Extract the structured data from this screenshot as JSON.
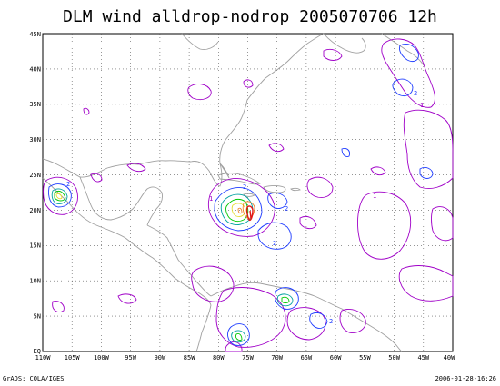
{
  "title": "DLM wind alldrop-nodrop 2005070706 12h",
  "footer": {
    "left": "GrADS: COLA/IGES",
    "right": "2006-01-28-16:26"
  },
  "map": {
    "lon_range": [
      -110,
      -40
    ],
    "lat_range": [
      0,
      45
    ],
    "lon_ticks": [
      "110W",
      "105W",
      "100W",
      "95W",
      "90W",
      "85W",
      "80W",
      "75W",
      "70W",
      "65W",
      "60W",
      "55W",
      "50W",
      "45W",
      "40W"
    ],
    "lat_ticks": [
      "EQ",
      "5N",
      "10N",
      "15N",
      "20N",
      "25N",
      "30N",
      "35N",
      "40N",
      "45N"
    ],
    "contour_colors": {
      "c1": "#a000c8",
      "c2": "#1e3cff",
      "c3": "#00a0a0",
      "c4": "#00c800",
      "c5": "#e6dc32",
      "c6": "#f08228",
      "c7": "#e61414",
      "coast": "#a0a0a0"
    },
    "contour_labels": [
      "2",
      "2",
      "2",
      "1",
      "1",
      "2",
      "1",
      "2",
      "2"
    ]
  }
}
